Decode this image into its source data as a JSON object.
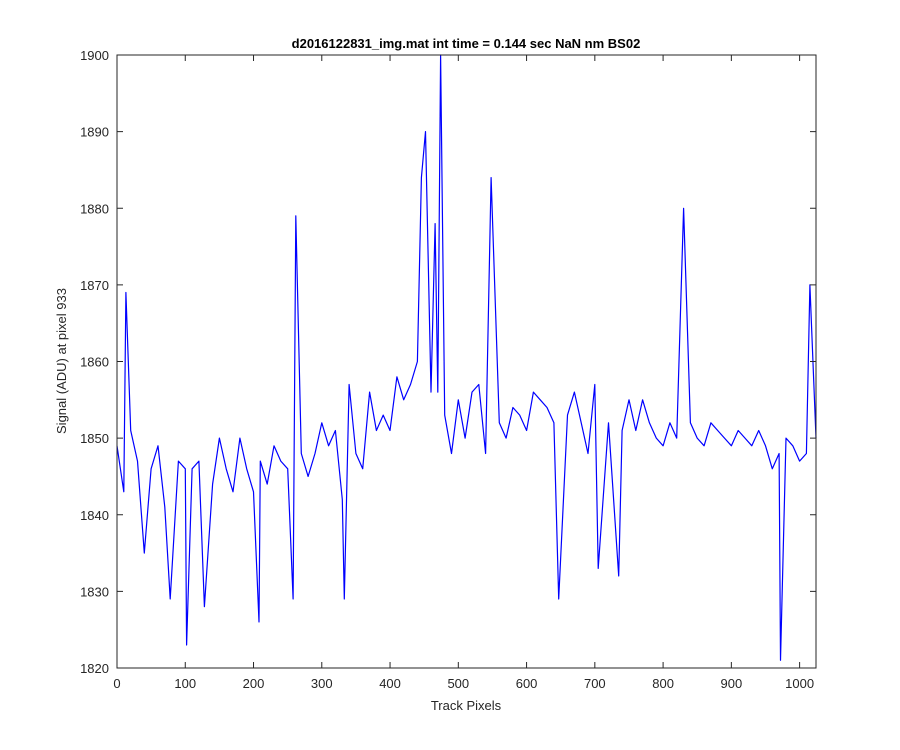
{
  "chart_data": {
    "type": "line",
    "title": "d2016122831_img.mat int time = 0.144 sec  NaN nm BS02",
    "xlabel": "Track Pixels",
    "ylabel": "Signal (ADU) at pixel 933",
    "xlim": [
      0,
      1024
    ],
    "ylim": [
      1820,
      1900
    ],
    "xticks": [
      0,
      100,
      200,
      300,
      400,
      500,
      600,
      700,
      800,
      900,
      1000
    ],
    "yticks": [
      1820,
      1830,
      1840,
      1850,
      1860,
      1870,
      1880,
      1890,
      1900
    ],
    "grid": false,
    "line_color": "#0000ff",
    "series": [
      {
        "x": [
          0,
          10,
          13,
          20,
          30,
          40,
          50,
          60,
          70,
          78,
          90,
          100,
          102,
          110,
          120,
          128,
          140,
          150,
          160,
          170,
          180,
          190,
          200,
          208,
          210,
          220,
          230,
          240,
          250,
          258,
          262,
          270,
          280,
          290,
          300,
          310,
          320,
          330,
          333,
          340,
          350,
          360,
          370,
          380,
          390,
          400,
          410,
          420,
          430,
          440,
          446,
          452,
          460,
          466,
          470,
          474,
          480,
          490,
          500,
          510,
          520,
          530,
          540,
          548,
          560,
          570,
          580,
          590,
          600,
          610,
          620,
          630,
          640,
          647,
          660,
          670,
          680,
          690,
          700,
          705,
          720,
          735,
          740,
          750,
          760,
          770,
          780,
          790,
          800,
          810,
          820,
          830,
          840,
          850,
          860,
          870,
          880,
          890,
          900,
          910,
          920,
          930,
          940,
          950,
          960,
          970,
          972,
          980,
          990,
          1000,
          1010,
          1015,
          1024
        ],
        "y": [
          1849,
          1843,
          1869,
          1851,
          1847,
          1835,
          1846,
          1849,
          1841,
          1829,
          1847,
          1846,
          1823,
          1846,
          1847,
          1828,
          1844,
          1850,
          1846,
          1843,
          1850,
          1846,
          1843,
          1826,
          1847,
          1844,
          1849,
          1847,
          1846,
          1829,
          1879,
          1848,
          1845,
          1848,
          1852,
          1849,
          1851,
          1842,
          1829,
          1857,
          1848,
          1846,
          1856,
          1851,
          1853,
          1851,
          1858,
          1855,
          1857,
          1860,
          1884,
          1890,
          1856,
          1878,
          1856,
          1900,
          1853,
          1848,
          1855,
          1850,
          1856,
          1857,
          1848,
          1884,
          1852,
          1850,
          1854,
          1853,
          1851,
          1856,
          1855,
          1854,
          1852,
          1829,
          1853,
          1856,
          1852,
          1848,
          1857,
          1833,
          1852,
          1832,
          1851,
          1855,
          1851,
          1855,
          1852,
          1850,
          1849,
          1852,
          1850,
          1880,
          1852,
          1850,
          1849,
          1852,
          1851,
          1850,
          1849,
          1851,
          1850,
          1849,
          1851,
          1849,
          1846,
          1848,
          1821,
          1850,
          1849,
          1847,
          1848,
          1870,
          1850
        ]
      }
    ]
  }
}
